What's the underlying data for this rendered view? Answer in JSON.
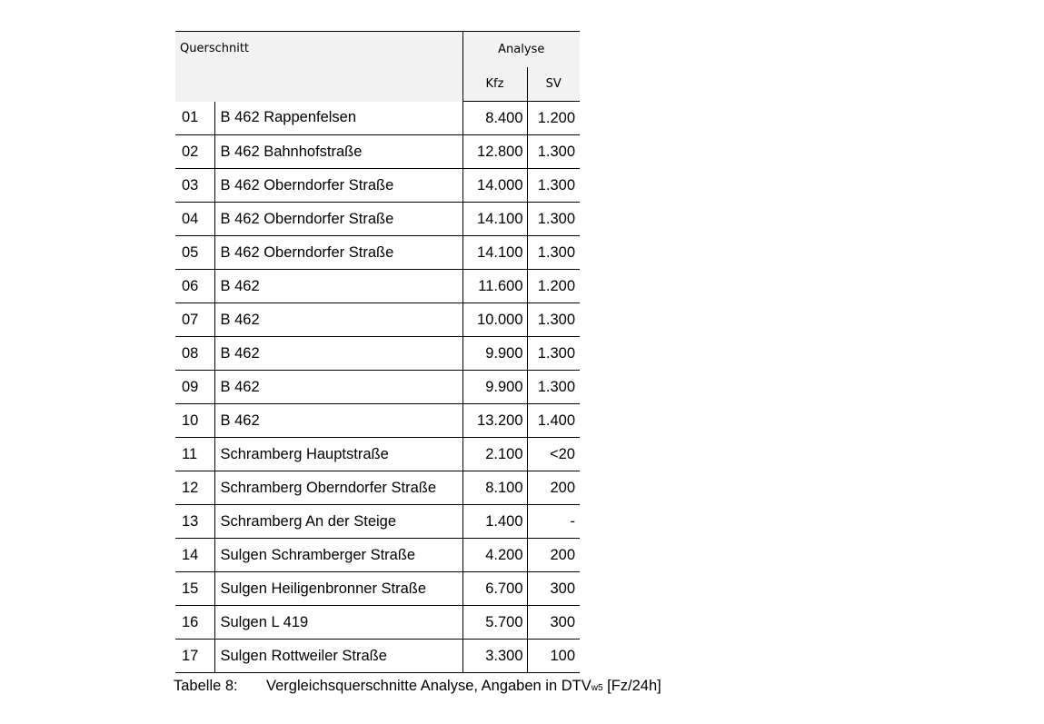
{
  "table": {
    "header": {
      "querschnitt": "Querschnitt",
      "analyse": "Analyse",
      "kfz": "Kfz",
      "sv": "SV"
    },
    "rows": [
      {
        "nr": "01",
        "name": "B 462 Rappenfelsen",
        "kfz": "8.400",
        "sv": "1.200"
      },
      {
        "nr": "02",
        "name": "B 462 Bahnhofstraße",
        "kfz": "12.800",
        "sv": "1.300"
      },
      {
        "nr": "03",
        "name": "B 462 Oberndorfer Straße",
        "kfz": "14.000",
        "sv": "1.300"
      },
      {
        "nr": "04",
        "name": "B 462 Oberndorfer Straße",
        "kfz": "14.100",
        "sv": "1.300"
      },
      {
        "nr": "05",
        "name": "B 462 Oberndorfer Straße",
        "kfz": "14.100",
        "sv": "1.300"
      },
      {
        "nr": "06",
        "name": "B 462",
        "kfz": "11.600",
        "sv": "1.200"
      },
      {
        "nr": "07",
        "name": "B 462",
        "kfz": "10.000",
        "sv": "1.300"
      },
      {
        "nr": "08",
        "name": "B 462",
        "kfz": "9.900",
        "sv": "1.300"
      },
      {
        "nr": "09",
        "name": "B 462",
        "kfz": "9.900",
        "sv": "1.300"
      },
      {
        "nr": "10",
        "name": "B 462",
        "kfz": "13.200",
        "sv": "1.400"
      },
      {
        "nr": "11",
        "name": "Schramberg Hauptstraße",
        "kfz": "2.100",
        "sv": "<20"
      },
      {
        "nr": "12",
        "name": "Schramberg Oberndorfer Straße",
        "kfz": "8.100",
        "sv": "200"
      },
      {
        "nr": "13",
        "name": "Schramberg An der Steige",
        "kfz": "1.400",
        "sv": "-"
      },
      {
        "nr": "14",
        "name": "Sulgen Schramberger Straße",
        "kfz": "4.200",
        "sv": "200"
      },
      {
        "nr": "15",
        "name": "Sulgen Heiligenbronner Straße",
        "kfz": "6.700",
        "sv": "300"
      },
      {
        "nr": "16",
        "name": "Sulgen L 419",
        "kfz": "5.700",
        "sv": "300"
      },
      {
        "nr": "17",
        "name": "Sulgen Rottweiler Straße",
        "kfz": "3.300",
        "sv": "100"
      }
    ]
  },
  "caption": {
    "label": "Tabelle 8:",
    "text": "Vergleichsquerschnitte Analyse, Angaben in DTV",
    "sub": "w5",
    "unit": " [Fz/24h]"
  }
}
